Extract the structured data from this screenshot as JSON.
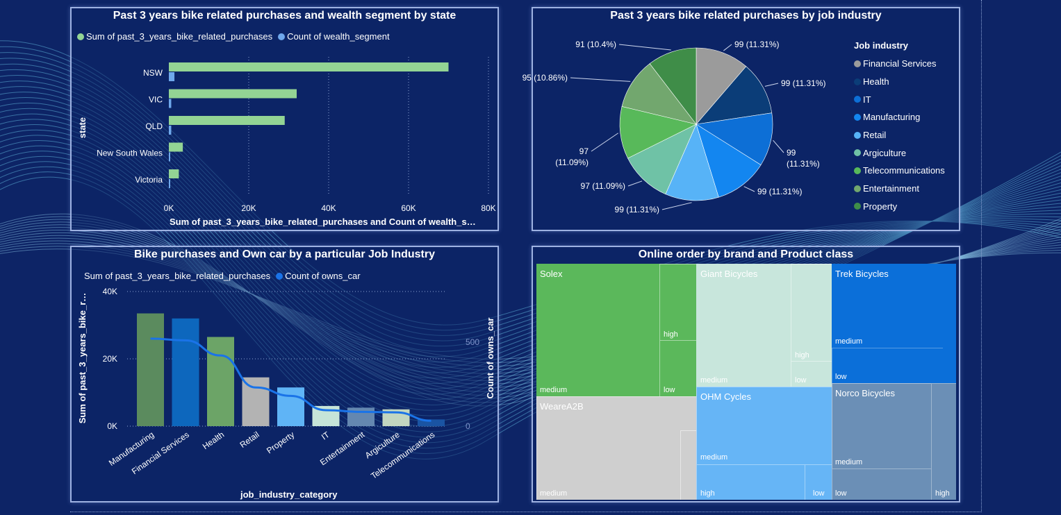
{
  "colors": {
    "background": "#0d2466",
    "panel_border": "#9eb2e2",
    "green_bar": "#93d494",
    "blue_bar": "#6fa8ec"
  },
  "chart_data": [
    {
      "type": "bar",
      "orientation": "horizontal",
      "title": "Past 3 years bike related purchases and wealth segment by state",
      "categories": [
        "NSW",
        "VIC",
        "QLD",
        "New South Wales",
        "Victoria"
      ],
      "series": [
        {
          "name": "Sum of past_3_years_bike_related_purchases",
          "values": [
            70000,
            32000,
            29000,
            3500,
            2500
          ],
          "color": "#93d494"
        },
        {
          "name": "Count of wealth_segment",
          "values": [
            1400,
            600,
            600,
            80,
            50
          ],
          "color": "#6fa8ec"
        }
      ],
      "xlabel": "Sum of past_3_years_bike_related_purchases and Count of wealth_s…",
      "ylabel": "state",
      "xlim": [
        0,
        80000
      ],
      "xticks": [
        "0K",
        "20K",
        "40K",
        "60K",
        "80K"
      ],
      "legend": "top-left",
      "grid": true
    },
    {
      "type": "pie",
      "title": "Past 3 years bike related purchases by job industry",
      "legend_title": "Job industry",
      "slices": [
        {
          "label": "Financial Services",
          "value": 99,
          "text": "99 (11.31%)",
          "color": "#9b9b9b"
        },
        {
          "label": "Health",
          "value": 99,
          "text": "99 (11.31%)",
          "color": "#0b3d78"
        },
        {
          "label": "IT",
          "value": 99,
          "text": "99 (11.31%)",
          "color": "#0d6fd6"
        },
        {
          "label": "Manufacturing",
          "value": 99,
          "text": "99 (11.31%)",
          "color": "#1386f0"
        },
        {
          "label": "Retail",
          "value": 99,
          "text": "99 (11.31%)",
          "color": "#57b3f7"
        },
        {
          "label": "Argiculture",
          "value": 97,
          "text": "97 (11.09%)",
          "color": "#6fc2a6"
        },
        {
          "label": "Telecommunications",
          "value": 97,
          "text": "97 (11.09%)",
          "color": "#58b95a"
        },
        {
          "label": "Entertainment",
          "value": 95,
          "text": "95 (10.86%)",
          "color": "#72a76e"
        },
        {
          "label": "Property",
          "value": 91,
          "text": "91 (10.4%)",
          "color": "#3f8d48"
        }
      ],
      "legend": "right"
    },
    {
      "type": "bar",
      "subtype": "column-with-line",
      "title": "Bike purchases and Own car by a particular Job Industry",
      "categories": [
        "Manufacturing",
        "Financial Services",
        "Health",
        "Retail",
        "Property",
        "IT",
        "Entertainment",
        "Argiculture",
        "Telecommunications"
      ],
      "series": [
        {
          "name": "Sum of past_3_years_bike_related_purchases",
          "values": [
            33500,
            32000,
            26500,
            14500,
            11500,
            6000,
            5500,
            5000,
            2000
          ]
        },
        {
          "name": "Count of owns_car",
          "axis": "secondary",
          "values": [
            520,
            510,
            420,
            230,
            180,
            95,
            85,
            82,
            32
          ]
        }
      ],
      "bar_colors": [
        "#5b8b5e",
        "#0d67bd",
        "#6ca467",
        "#b3b3b3",
        "#5fb4f6",
        "#c6e4d8",
        "#6487b0",
        "#c2d6c0",
        "#1a54a3"
      ],
      "xlabel": "job_industry_category",
      "ylabel": "Sum of past_3_years_bike_r…",
      "y2label": "Count of owns_car",
      "ylim": [
        0,
        40000
      ],
      "yticks": [
        "0K",
        "20K",
        "40K"
      ],
      "y2ticks": [
        "0",
        "500"
      ],
      "legend": "top-left"
    },
    {
      "type": "treemap",
      "title": "Online order by brand and Product class",
      "items": [
        {
          "brand": "Solex",
          "color": "#5bb85b",
          "classes": [
            "medium",
            "high",
            "low"
          ]
        },
        {
          "brand": "Giant Bicycles",
          "color": "#c8e6dc",
          "classes": [
            "medium",
            "high",
            "low"
          ]
        },
        {
          "brand": "Trek Bicycles",
          "color": "#0b6fd9",
          "classes": [
            "medium",
            "low"
          ]
        },
        {
          "brand": "WeareA2B",
          "color": "#cfcfcf",
          "classes": [
            "medium"
          ]
        },
        {
          "brand": "OHM Cycles",
          "color": "#66b5f6",
          "classes": [
            "medium",
            "high",
            "low"
          ]
        },
        {
          "brand": "Norco Bicycles",
          "color": "#6b8fb6",
          "classes": [
            "medium",
            "low",
            "high"
          ]
        }
      ]
    }
  ]
}
